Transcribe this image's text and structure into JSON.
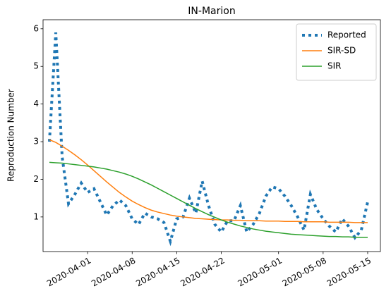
{
  "chart_data": {
    "type": "line",
    "title": "IN-Marion",
    "ylabel": "Reproduction Number",
    "x": [
      "2020-03-26",
      "2020-03-27",
      "2020-03-28",
      "2020-03-29",
      "2020-03-30",
      "2020-03-31",
      "2020-04-01",
      "2020-04-02",
      "2020-04-03",
      "2020-04-04",
      "2020-04-05",
      "2020-04-06",
      "2020-04-07",
      "2020-04-08",
      "2020-04-09",
      "2020-04-10",
      "2020-04-11",
      "2020-04-12",
      "2020-04-13",
      "2020-04-14",
      "2020-04-15",
      "2020-04-16",
      "2020-04-17",
      "2020-04-18",
      "2020-04-19",
      "2020-04-20",
      "2020-04-21",
      "2020-04-22",
      "2020-04-23",
      "2020-04-24",
      "2020-04-25",
      "2020-04-26",
      "2020-04-27",
      "2020-04-28",
      "2020-04-29",
      "2020-04-30",
      "2020-05-01",
      "2020-05-02",
      "2020-05-03",
      "2020-05-04",
      "2020-05-05",
      "2020-05-06",
      "2020-05-07",
      "2020-05-08",
      "2020-05-09",
      "2020-05-10",
      "2020-05-11",
      "2020-05-12",
      "2020-05-13",
      "2020-05-14",
      "2020-05-15"
    ],
    "series": [
      {
        "name": "Reported",
        "color": "#1f77b4",
        "linestyle": "dotted",
        "values": [
          3.0,
          5.9,
          2.6,
          1.35,
          1.6,
          1.9,
          1.65,
          1.75,
          1.4,
          1.05,
          1.3,
          1.45,
          1.3,
          0.95,
          0.8,
          1.1,
          1.0,
          0.95,
          0.85,
          0.35,
          0.95,
          1.0,
          1.5,
          1.1,
          1.95,
          1.3,
          0.8,
          0.6,
          0.9,
          0.9,
          1.3,
          0.6,
          0.8,
          1.1,
          1.55,
          1.8,
          1.75,
          1.55,
          1.3,
          1.0,
          0.65,
          1.6,
          1.2,
          0.95,
          0.75,
          0.6,
          0.95,
          0.75,
          0.45,
          0.65,
          1.4
        ]
      },
      {
        "name": "SIR-SD",
        "color": "#ff7f0e",
        "linestyle": "solid",
        "values": [
          3.05,
          2.98,
          2.88,
          2.77,
          2.65,
          2.52,
          2.38,
          2.23,
          2.08,
          1.93,
          1.79,
          1.65,
          1.53,
          1.42,
          1.33,
          1.25,
          1.18,
          1.13,
          1.09,
          1.05,
          1.02,
          1.0,
          0.98,
          0.96,
          0.95,
          0.94,
          0.93,
          0.92,
          0.92,
          0.91,
          0.91,
          0.9,
          0.9,
          0.9,
          0.89,
          0.89,
          0.89,
          0.88,
          0.88,
          0.88,
          0.87,
          0.87,
          0.87,
          0.87,
          0.86,
          0.86,
          0.86,
          0.86,
          0.85,
          0.85,
          0.85
        ]
      },
      {
        "name": "SIR",
        "color": "#2ca02c",
        "linestyle": "solid",
        "values": [
          2.45,
          2.44,
          2.43,
          2.41,
          2.39,
          2.37,
          2.35,
          2.33,
          2.3,
          2.27,
          2.23,
          2.19,
          2.14,
          2.08,
          2.01,
          1.93,
          1.85,
          1.76,
          1.67,
          1.58,
          1.49,
          1.4,
          1.31,
          1.22,
          1.14,
          1.06,
          0.99,
          0.92,
          0.86,
          0.81,
          0.76,
          0.72,
          0.68,
          0.65,
          0.62,
          0.6,
          0.58,
          0.56,
          0.54,
          0.53,
          0.52,
          0.51,
          0.5,
          0.49,
          0.48,
          0.48,
          0.47,
          0.47,
          0.46,
          0.46,
          0.46
        ]
      }
    ],
    "xlim": [
      "2020-03-25",
      "2020-05-17"
    ],
    "xticks": [
      "2020-04-01",
      "2020-04-08",
      "2020-04-15",
      "2020-04-22",
      "2020-05-01",
      "2020-05-08",
      "2020-05-15"
    ],
    "ylim": [
      0.08,
      6.24
    ],
    "yticks": [
      1,
      2,
      3,
      4,
      5,
      6
    ],
    "legend": "upper right",
    "grid": false
  }
}
